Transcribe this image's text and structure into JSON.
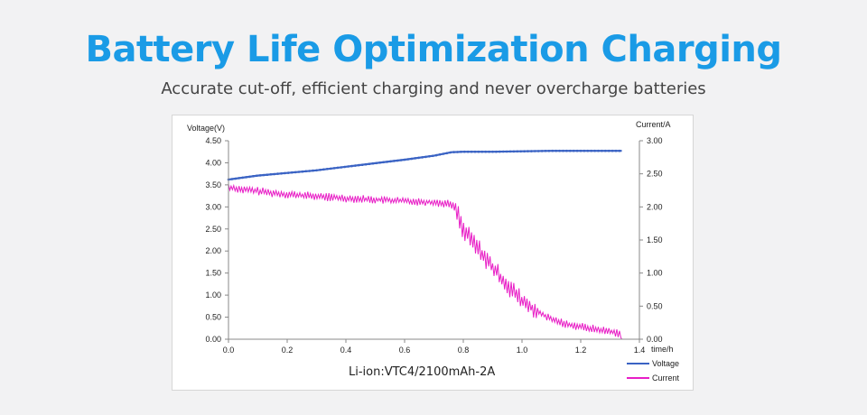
{
  "header": {
    "title": "Battery Life Optimization Charging",
    "subtitle": "Accurate cut-off, efficient charging and never overcharge batteries"
  },
  "chart_data": {
    "type": "line",
    "caption": "Li-ion:VTC4/2100mAh-2A",
    "xlabel": "time/h",
    "ylabel_left": "Voltage(V)",
    "ylabel_right": "Current/A",
    "x_ticks": [
      "0.0",
      "0.2",
      "0.4",
      "0.6",
      "0.8",
      "1.0",
      "1.2",
      "1.4"
    ],
    "y_left_ticks": [
      "0.00",
      "0.50",
      "1.00",
      "1.50",
      "2.00",
      "2.50",
      "3.00",
      "3.50",
      "4.00",
      "4.50"
    ],
    "y_right_ticks": [
      "0.00",
      "0.50",
      "1.00",
      "1.50",
      "2.00",
      "2.50",
      "3.00"
    ],
    "xlim": [
      0,
      1.4
    ],
    "ylim_left": [
      0,
      4.5
    ],
    "ylim_right": [
      0,
      3.0
    ],
    "legend_position": "bottom-right",
    "series": [
      {
        "name": "Voltage",
        "axis": "left",
        "color": "#3a63c4",
        "x": [
          0.0,
          0.1,
          0.2,
          0.3,
          0.4,
          0.5,
          0.6,
          0.7,
          0.76,
          0.8,
          0.9,
          1.0,
          1.1,
          1.2,
          1.3,
          1.34
        ],
        "y": [
          3.62,
          3.71,
          3.77,
          3.83,
          3.91,
          3.99,
          4.07,
          4.16,
          4.24,
          4.25,
          4.25,
          4.26,
          4.27,
          4.27,
          4.27,
          4.27
        ]
      },
      {
        "name": "Current",
        "axis": "right",
        "color": "#e81ec6",
        "x": [
          0.0,
          0.05,
          0.1,
          0.15,
          0.2,
          0.3,
          0.4,
          0.5,
          0.6,
          0.7,
          0.76,
          0.78,
          0.8,
          0.85,
          0.9,
          0.95,
          1.0,
          1.05,
          1.1,
          1.15,
          1.2,
          1.25,
          1.3,
          1.34
        ],
        "y": [
          2.3,
          2.26,
          2.24,
          2.21,
          2.19,
          2.16,
          2.13,
          2.11,
          2.09,
          2.07,
          2.04,
          1.92,
          1.65,
          1.38,
          1.08,
          0.82,
          0.58,
          0.42,
          0.3,
          0.23,
          0.19,
          0.15,
          0.12,
          0.08
        ]
      }
    ]
  }
}
